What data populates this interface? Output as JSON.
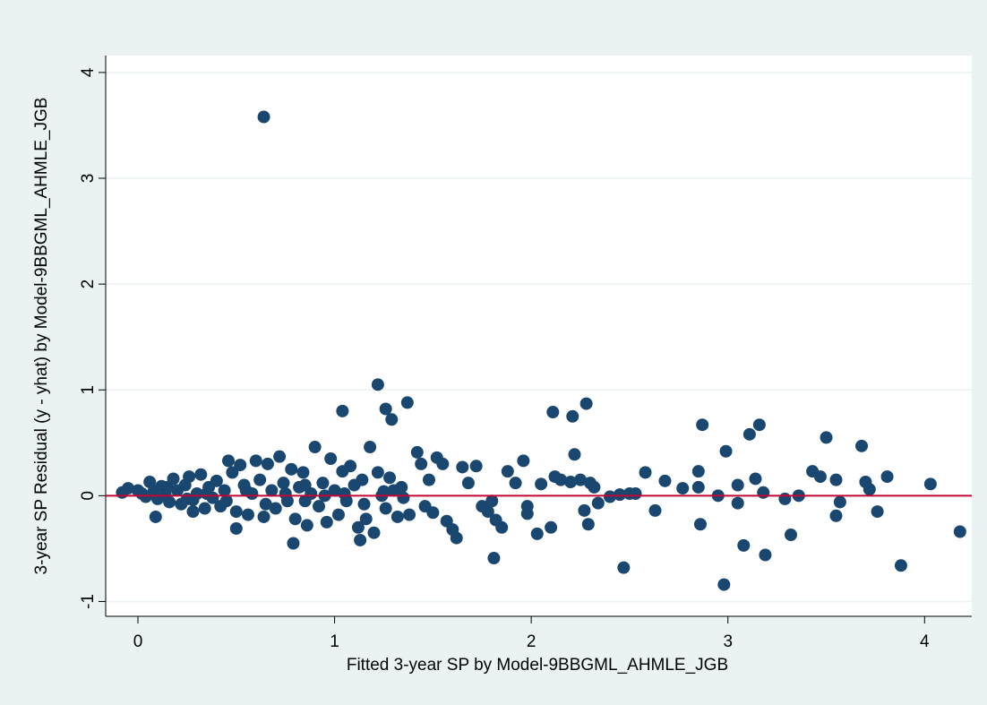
{
  "chart_data": {
    "type": "scatter",
    "x_label": "Fitted 3-year SP by Model-9BBGML_AHMLE_JGB",
    "y_label": "3-year SP Residual (y - yhat) by Model-9BBGML_AHMLE_JGB",
    "x": [
      0.64,
      1.22,
      1.26,
      1.04,
      1.29,
      1.37,
      2.11,
      2.21,
      2.28,
      2.22,
      2.87,
      3.16,
      3.11,
      3.5,
      3.68,
      2.99,
      2.47,
      2.98,
      3.88,
      4.18,
      1.81,
      3.19,
      3.08,
      3.32,
      0.79,
      1.13,
      0.5,
      0.09,
      4.03,
      3.81,
      3.43,
      3.47,
      3.55,
      3.7,
      3.72,
      3.57,
      3.55,
      3.76,
      3.36,
      3.29,
      3.18,
      3.14,
      3.05,
      3.05,
      2.95,
      2.85,
      2.86,
      2.85,
      2.77,
      2.68,
      2.63,
      2.58,
      2.5,
      2.53,
      2.45,
      2.4,
      2.34,
      2.29,
      2.27,
      2.3,
      2.32,
      2.25,
      2.2,
      2.15,
      2.12,
      2.1,
      2.05,
      2.03,
      1.98,
      1.96,
      1.98,
      1.92,
      1.88,
      1.85,
      1.8,
      1.78,
      1.82,
      -0.08,
      -0.05,
      0.0,
      0.02,
      0.04,
      0.06,
      0.08,
      0.1,
      0.12,
      0.14,
      0.16,
      0.18,
      0.2,
      0.22,
      0.24,
      0.26,
      0.28,
      0.3,
      0.32,
      0.34,
      0.36,
      0.38,
      0.4,
      0.42,
      0.44,
      0.46,
      0.48,
      0.5,
      0.52,
      0.54,
      0.56,
      0.58,
      0.6,
      0.62,
      0.64,
      0.66,
      0.68,
      0.7,
      0.72,
      0.74,
      0.76,
      0.78,
      0.8,
      0.82,
      0.84,
      0.86,
      0.88,
      0.9,
      0.92,
      0.94,
      0.96,
      0.98,
      1.0,
      1.02,
      1.04,
      1.06,
      1.08,
      1.1,
      1.12,
      1.14,
      1.16,
      1.18,
      1.2,
      1.22,
      1.24,
      1.26,
      1.28,
      1.3,
      1.32,
      1.34,
      1.38,
      1.42,
      1.44,
      1.46,
      1.48,
      1.5,
      1.52,
      1.55,
      1.57,
      1.6,
      1.62,
      1.65,
      1.68,
      1.72,
      1.75,
      0.28,
      0.35,
      0.45,
      0.55,
      0.65,
      0.75,
      0.85,
      0.95,
      1.05,
      1.15,
      1.25,
      0.15,
      0.25,
      0.85,
      1.35
    ],
    "values": [
      3.58,
      1.05,
      0.82,
      0.8,
      0.72,
      0.88,
      0.79,
      0.75,
      0.87,
      0.39,
      0.67,
      0.67,
      0.58,
      0.55,
      0.47,
      0.42,
      -0.68,
      -0.84,
      -0.66,
      -0.34,
      -0.59,
      -0.56,
      -0.47,
      -0.37,
      -0.45,
      -0.42,
      -0.31,
      -0.2,
      0.11,
      0.18,
      0.23,
      0.18,
      0.15,
      0.13,
      0.06,
      -0.06,
      -0.19,
      -0.15,
      0.0,
      -0.03,
      0.03,
      0.16,
      0.1,
      -0.07,
      0.0,
      0.23,
      -0.27,
      0.08,
      0.07,
      0.14,
      -0.14,
      0.22,
      0.02,
      0.02,
      0.01,
      -0.01,
      -0.07,
      -0.27,
      -0.14,
      0.12,
      0.08,
      0.15,
      0.13,
      0.15,
      0.18,
      -0.3,
      0.11,
      -0.36,
      -0.1,
      0.33,
      -0.17,
      0.12,
      0.23,
      -0.3,
      -0.05,
      -0.15,
      -0.23,
      0.03,
      0.07,
      0.05,
      0.02,
      -0.01,
      0.13,
      0.04,
      -0.03,
      0.09,
      0.0,
      -0.06,
      0.16,
      0.05,
      -0.08,
      0.1,
      0.18,
      -0.04,
      0.02,
      0.2,
      -0.12,
      0.08,
      -0.02,
      0.14,
      -0.1,
      0.05,
      0.33,
      0.22,
      -0.15,
      0.29,
      0.1,
      -0.18,
      0.02,
      0.33,
      0.15,
      -0.2,
      0.3,
      0.05,
      -0.12,
      0.37,
      0.12,
      -0.05,
      0.25,
      -0.22,
      0.08,
      0.22,
      -0.28,
      0.02,
      0.46,
      -0.1,
      0.12,
      -0.25,
      0.35,
      0.05,
      -0.18,
      0.23,
      -0.05,
      0.28,
      0.1,
      -0.3,
      0.15,
      -0.22,
      0.46,
      -0.35,
      0.22,
      0.0,
      -0.12,
      0.17,
      0.05,
      -0.2,
      0.08,
      -0.18,
      0.41,
      0.3,
      -0.1,
      0.15,
      -0.16,
      0.36,
      0.3,
      -0.24,
      -0.32,
      -0.4,
      0.27,
      0.12,
      0.28,
      -0.1,
      -0.15,
      0.02,
      -0.05,
      0.05,
      -0.08,
      0.02,
      -0.05,
      0.0,
      0.02,
      -0.08,
      0.04,
      0.08,
      -0.03,
      0.1,
      -0.02
    ],
    "color": "#1a476f",
    "hline": {
      "value": 0,
      "color": "#c10534"
    },
    "xlim": [
      -0.164,
      4.24
    ],
    "ylim": [
      -1.14,
      4.16
    ],
    "xticks": [
      0,
      1,
      2,
      3,
      4
    ],
    "yticks": [
      -1,
      0,
      1,
      2,
      3,
      4
    ],
    "grid": true
  }
}
